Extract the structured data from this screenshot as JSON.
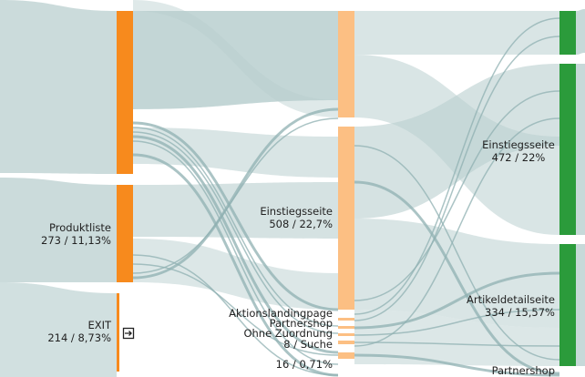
{
  "colors": {
    "column1": "#f78a1d",
    "column2": "#fcbf83",
    "column3": "#2b9b3b",
    "flow": "#b9cfcf",
    "flow_edge": "#8fb0b1"
  },
  "nodes": {
    "c1_top": {
      "label": "",
      "value": ""
    },
    "produktliste": {
      "label": "Produktliste",
      "value": "273 / 11,13%"
    },
    "exit": {
      "label": "EXIT",
      "value": "214 / 8,73%",
      "icon": "exit-icon"
    },
    "c2_top": {
      "label": "",
      "value": ""
    },
    "einstieg2": {
      "label": "Einstiegsseite",
      "value": "508 / 22,7%"
    },
    "aktion": {
      "label": "Aktionslandingpage",
      "value": ""
    },
    "partnershop2": {
      "label": "Partnershop",
      "value": ""
    },
    "ohne": {
      "label": "Ohne Zuordnung",
      "value": ""
    },
    "suche": {
      "label": "8 / Suche",
      "value": ""
    },
    "small4": {
      "label": "16 / 0,71%",
      "value": ""
    },
    "c3_top": {
      "label": "",
      "value": ""
    },
    "einstieg3": {
      "label": "Einstiegsseite",
      "value": "472 / 22%"
    },
    "artikel": {
      "label": "Artikeldetailseite",
      "value": "334 / 15,57%"
    },
    "partnershop3": {
      "label": "Partnershop",
      "value": ""
    }
  }
}
